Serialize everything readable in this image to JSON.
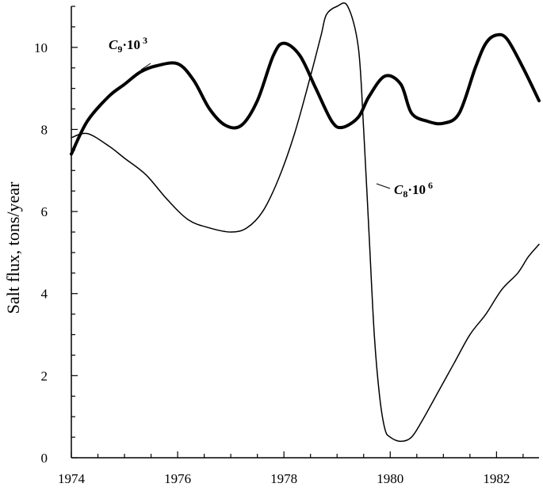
{
  "chart_data": {
    "type": "line",
    "title": "",
    "xlabel": "",
    "ylabel": "Salt flux, tons/year",
    "xlim": [
      1974,
      1982.8
    ],
    "ylim": [
      0,
      11
    ],
    "x_ticks": [
      1974,
      1976,
      1978,
      1980,
      1982
    ],
    "x_tick_labels": [
      "1974",
      "1976",
      "1978",
      "1980",
      "1982"
    ],
    "y_ticks": [
      0,
      2,
      4,
      6,
      8,
      10
    ],
    "y_tick_labels": [
      "0",
      "2",
      "4",
      "6",
      "8",
      "10"
    ],
    "grid": false,
    "series": [
      {
        "label_base": "C",
        "label_sub": "9",
        "label_mult": "·10",
        "label_sup": "3",
        "style": "thick",
        "x": [
          1974.0,
          1974.3,
          1974.7,
          1975.0,
          1975.3,
          1975.6,
          1976.0,
          1976.3,
          1976.6,
          1976.9,
          1977.2,
          1977.5,
          1977.8,
          1978.0,
          1978.3,
          1978.6,
          1978.9,
          1979.1,
          1979.4,
          1979.6,
          1979.9,
          1980.2,
          1980.4,
          1980.7,
          1981.0,
          1981.3,
          1981.6,
          1981.8,
          1982.0,
          1982.2,
          1982.5,
          1982.8
        ],
        "y": [
          7.4,
          8.2,
          8.8,
          9.1,
          9.4,
          9.55,
          9.6,
          9.2,
          8.5,
          8.1,
          8.1,
          8.7,
          9.8,
          10.1,
          9.8,
          9.0,
          8.2,
          8.05,
          8.3,
          8.8,
          9.3,
          9.1,
          8.4,
          8.2,
          8.15,
          8.4,
          9.5,
          10.1,
          10.3,
          10.2,
          9.5,
          8.7
        ]
      },
      {
        "label_base": "C",
        "label_sub": "8",
        "label_mult": "·10",
        "label_sup": "6",
        "style": "thin",
        "x": [
          1974.0,
          1974.3,
          1974.7,
          1975.0,
          1975.4,
          1975.8,
          1976.2,
          1976.6,
          1977.0,
          1977.3,
          1977.6,
          1977.9,
          1978.2,
          1978.5,
          1978.7,
          1978.8,
          1979.0,
          1979.2,
          1979.4,
          1979.5,
          1979.6,
          1979.7,
          1979.8,
          1979.9,
          1980.0,
          1980.2,
          1980.4,
          1980.6,
          1980.9,
          1981.2,
          1981.5,
          1981.8,
          1982.1,
          1982.4,
          1982.6,
          1982.8
        ],
        "y": [
          7.8,
          7.9,
          7.6,
          7.3,
          6.9,
          6.3,
          5.8,
          5.6,
          5.5,
          5.6,
          6.0,
          6.8,
          7.9,
          9.3,
          10.3,
          10.8,
          11.0,
          11.0,
          10.0,
          8.0,
          5.5,
          3.0,
          1.5,
          0.7,
          0.5,
          0.4,
          0.5,
          0.9,
          1.6,
          2.3,
          3.0,
          3.5,
          4.1,
          4.5,
          4.9,
          5.2
        ]
      }
    ]
  }
}
